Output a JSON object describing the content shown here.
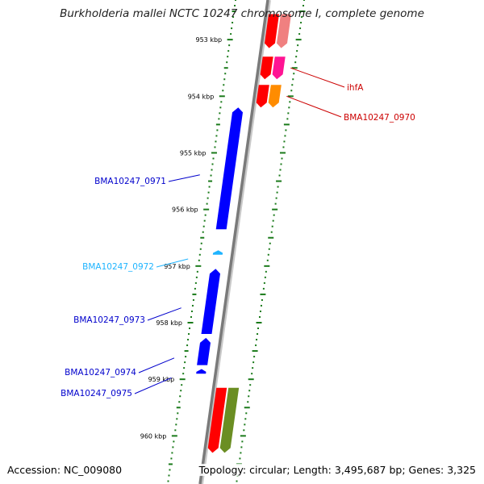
{
  "title": "Burkholderia mallei NCTC 10247 chromosome I, complete genome",
  "footer": {
    "accession": "Accession: NC_009080",
    "summary": "Topology: circular; Length: 3,495,687 bp; Genes: 3,325"
  },
  "ruler": {
    "ticks": [
      {
        "label": "953 kbp",
        "kbp": 953
      },
      {
        "label": "954 kbp",
        "kbp": 954
      },
      {
        "label": "955 kbp",
        "kbp": 955
      },
      {
        "label": "956 kbp",
        "kbp": 956
      },
      {
        "label": "957 kbp",
        "kbp": 957
      },
      {
        "label": "958 kbp",
        "kbp": 958
      },
      {
        "label": "959 kbp",
        "kbp": 959
      },
      {
        "label": "960 kbp",
        "kbp": 960
      }
    ],
    "tick_color": "#1a7a1a"
  },
  "forward_genes": [
    {
      "label": "",
      "color": "#ff0000",
      "start_kbp": 952.55,
      "end_kbp": 953.15,
      "shadow_color": "#f08080"
    },
    {
      "label": "ihfA",
      "color": "#ff0000",
      "label_color": "#cc0000",
      "start_kbp": 953.3,
      "end_kbp": 953.7,
      "shadow_color": "#ff1493"
    },
    {
      "label": "BMA10247_0970",
      "color": "#ff0000",
      "label_color": "#cc0000",
      "start_kbp": 953.8,
      "end_kbp": 954.2,
      "shadow_color": "#ff8c00"
    },
    {
      "label": "",
      "color": "#ff0000",
      "start_kbp": 959.15,
      "end_kbp": 960.3,
      "shadow_color": "#6b8e23"
    }
  ],
  "reverse_genes": [
    {
      "label": "BMA10247_0971",
      "color": "#0000ff",
      "label_color": "#0000cc",
      "start_kbp": 954.2,
      "end_kbp": 956.35
    },
    {
      "label": "BMA10247_0972",
      "color": "#1fb4ff",
      "label_color": "#1fb4ff",
      "start_kbp": 956.72,
      "end_kbp": 956.8
    },
    {
      "label": "BMA10247_0973",
      "color": "#0000ff",
      "label_color": "#0000cc",
      "start_kbp": 957.05,
      "end_kbp": 958.2
    },
    {
      "label": "BMA10247_0974",
      "color": "#0000ff",
      "label_color": "#0000cc",
      "start_kbp": 958.27,
      "end_kbp": 958.75
    },
    {
      "label": "BMA10247_0975",
      "color": "#0000ff",
      "label_color": "#0000cc",
      "start_kbp": 958.82,
      "end_kbp": 958.9
    }
  ]
}
